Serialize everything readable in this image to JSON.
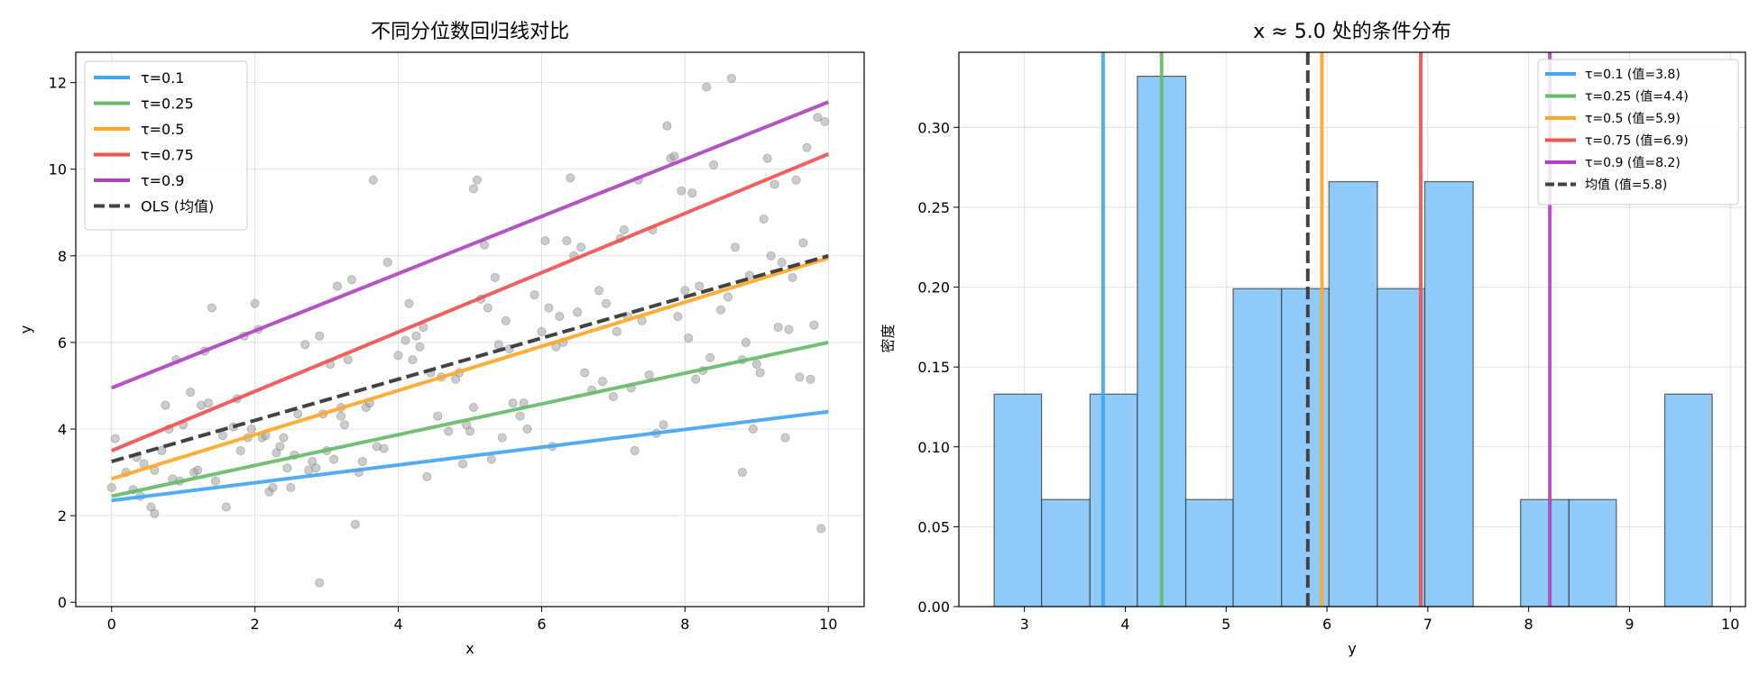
{
  "chart_data": [
    {
      "type": "scatter",
      "title": "不同分位数回归线对比",
      "xlabel": "x",
      "ylabel": "y",
      "xlim": [
        -0.5,
        10.5
      ],
      "ylim": [
        -0.1,
        12.7
      ],
      "xticks": [
        0,
        2,
        4,
        6,
        8,
        10
      ],
      "yticks": [
        0,
        2,
        4,
        6,
        8,
        10,
        12
      ],
      "grid": true,
      "legend_position": "top-left",
      "points_color": "#999999",
      "points": [
        [
          0.0,
          2.65
        ],
        [
          0.05,
          3.78
        ],
        [
          0.2,
          3.0
        ],
        [
          0.3,
          2.6
        ],
        [
          0.35,
          3.35
        ],
        [
          0.4,
          2.45
        ],
        [
          0.45,
          3.2
        ],
        [
          0.55,
          2.2
        ],
        [
          0.6,
          2.05
        ],
        [
          0.6,
          3.05
        ],
        [
          0.7,
          3.5
        ],
        [
          0.75,
          4.55
        ],
        [
          0.8,
          4.0
        ],
        [
          0.85,
          2.85
        ],
        [
          0.9,
          5.6
        ],
        [
          0.95,
          2.8
        ],
        [
          1.0,
          4.1
        ],
        [
          1.1,
          4.85
        ],
        [
          1.15,
          3.0
        ],
        [
          1.2,
          3.05
        ],
        [
          1.25,
          4.55
        ],
        [
          1.3,
          5.8
        ],
        [
          1.35,
          4.6
        ],
        [
          1.4,
          6.8
        ],
        [
          1.45,
          2.8
        ],
        [
          1.55,
          3.85
        ],
        [
          1.6,
          2.2
        ],
        [
          1.7,
          4.05
        ],
        [
          1.75,
          4.7
        ],
        [
          1.8,
          3.5
        ],
        [
          1.85,
          6.15
        ],
        [
          1.9,
          3.8
        ],
        [
          1.95,
          4.0
        ],
        [
          2.0,
          6.9
        ],
        [
          2.05,
          6.3
        ],
        [
          2.1,
          3.8
        ],
        [
          2.15,
          3.85
        ],
        [
          2.2,
          2.55
        ],
        [
          2.25,
          2.65
        ],
        [
          2.3,
          3.45
        ],
        [
          2.35,
          3.6
        ],
        [
          2.4,
          3.8
        ],
        [
          2.45,
          3.1
        ],
        [
          2.5,
          2.65
        ],
        [
          2.55,
          3.4
        ],
        [
          2.6,
          4.35
        ],
        [
          2.7,
          5.95
        ],
        [
          2.75,
          3.05
        ],
        [
          2.8,
          3.25
        ],
        [
          2.85,
          3.1
        ],
        [
          2.9,
          6.15
        ],
        [
          2.9,
          0.45
        ],
        [
          2.95,
          4.35
        ],
        [
          3.0,
          3.5
        ],
        [
          3.05,
          5.5
        ],
        [
          3.1,
          3.3
        ],
        [
          3.15,
          7.3
        ],
        [
          3.2,
          4.5
        ],
        [
          3.2,
          4.3
        ],
        [
          3.25,
          4.1
        ],
        [
          3.3,
          5.6
        ],
        [
          3.35,
          7.45
        ],
        [
          3.4,
          1.8
        ],
        [
          3.45,
          3.0
        ],
        [
          3.5,
          3.25
        ],
        [
          3.55,
          4.5
        ],
        [
          3.6,
          4.6
        ],
        [
          3.65,
          9.75
        ],
        [
          3.7,
          3.6
        ],
        [
          3.8,
          3.55
        ],
        [
          3.85,
          7.85
        ],
        [
          4.0,
          5.7
        ],
        [
          4.1,
          6.05
        ],
        [
          4.15,
          6.9
        ],
        [
          4.2,
          5.6
        ],
        [
          4.25,
          6.15
        ],
        [
          4.3,
          5.9
        ],
        [
          4.35,
          6.35
        ],
        [
          4.4,
          2.9
        ],
        [
          4.45,
          5.3
        ],
        [
          4.55,
          4.3
        ],
        [
          4.6,
          5.2
        ],
        [
          4.7,
          3.95
        ],
        [
          4.8,
          5.15
        ],
        [
          4.85,
          5.3
        ],
        [
          4.9,
          3.2
        ],
        [
          4.95,
          4.1
        ],
        [
          5.0,
          3.95
        ],
        [
          5.05,
          4.5
        ],
        [
          5.05,
          9.55
        ],
        [
          5.1,
          9.75
        ],
        [
          5.15,
          7.0
        ],
        [
          5.2,
          8.25
        ],
        [
          5.25,
          6.8
        ],
        [
          5.3,
          3.3
        ],
        [
          5.35,
          7.5
        ],
        [
          5.4,
          5.95
        ],
        [
          5.45,
          3.8
        ],
        [
          5.5,
          6.5
        ],
        [
          5.55,
          5.85
        ],
        [
          5.6,
          4.6
        ],
        [
          5.7,
          4.3
        ],
        [
          5.75,
          4.6
        ],
        [
          5.8,
          4.0
        ],
        [
          5.9,
          7.1
        ],
        [
          6.0,
          6.25
        ],
        [
          6.05,
          8.35
        ],
        [
          6.1,
          6.8
        ],
        [
          6.15,
          3.6
        ],
        [
          6.2,
          5.9
        ],
        [
          6.25,
          6.6
        ],
        [
          6.3,
          6.0
        ],
        [
          6.35,
          8.35
        ],
        [
          6.4,
          9.8
        ],
        [
          6.45,
          8.0
        ],
        [
          6.5,
          6.7
        ],
        [
          6.55,
          8.2
        ],
        [
          6.6,
          5.3
        ],
        [
          6.7,
          4.9
        ],
        [
          6.8,
          7.2
        ],
        [
          6.85,
          5.1
        ],
        [
          6.9,
          6.9
        ],
        [
          7.0,
          4.75
        ],
        [
          7.05,
          6.25
        ],
        [
          7.1,
          8.4
        ],
        [
          7.15,
          8.6
        ],
        [
          7.2,
          6.6
        ],
        [
          7.25,
          4.95
        ],
        [
          7.3,
          3.5
        ],
        [
          7.35,
          9.75
        ],
        [
          7.4,
          6.5
        ],
        [
          7.5,
          5.25
        ],
        [
          7.55,
          8.6
        ],
        [
          7.6,
          3.9
        ],
        [
          7.7,
          4.1
        ],
        [
          7.75,
          11.0
        ],
        [
          7.8,
          10.25
        ],
        [
          7.85,
          10.3
        ],
        [
          7.9,
          6.6
        ],
        [
          7.95,
          9.5
        ],
        [
          8.0,
          7.2
        ],
        [
          8.05,
          6.1
        ],
        [
          8.1,
          9.45
        ],
        [
          8.15,
          5.15
        ],
        [
          8.2,
          7.3
        ],
        [
          8.25,
          5.35
        ],
        [
          8.3,
          11.9
        ],
        [
          8.35,
          5.65
        ],
        [
          8.4,
          10.1
        ],
        [
          8.5,
          6.75
        ],
        [
          8.6,
          7.05
        ],
        [
          8.65,
          12.1
        ],
        [
          8.7,
          8.2
        ],
        [
          8.8,
          3.0
        ],
        [
          8.8,
          5.6
        ],
        [
          8.85,
          6.0
        ],
        [
          8.9,
          7.55
        ],
        [
          8.95,
          4.0
        ],
        [
          9.0,
          5.5
        ],
        [
          9.05,
          5.3
        ],
        [
          9.1,
          8.85
        ],
        [
          9.15,
          10.25
        ],
        [
          9.2,
          8.0
        ],
        [
          9.25,
          9.65
        ],
        [
          9.3,
          6.35
        ],
        [
          9.35,
          7.85
        ],
        [
          9.4,
          3.8
        ],
        [
          9.45,
          6.3
        ],
        [
          9.5,
          7.5
        ],
        [
          9.55,
          9.75
        ],
        [
          9.6,
          5.2
        ],
        [
          9.65,
          8.3
        ],
        [
          9.7,
          10.5
        ],
        [
          9.75,
          5.15
        ],
        [
          9.8,
          6.4
        ],
        [
          9.85,
          11.2
        ],
        [
          9.9,
          1.7
        ],
        [
          9.95,
          11.1
        ]
      ],
      "series": [
        {
          "name": "τ=0.1",
          "x": [
            0,
            10
          ],
          "y": [
            2.35,
            4.4
          ],
          "color": "#42A5F5",
          "dash": false
        },
        {
          "name": "τ=0.25",
          "x": [
            0,
            10
          ],
          "y": [
            2.45,
            6.0
          ],
          "color": "#66BB6A",
          "dash": false
        },
        {
          "name": "τ=0.5",
          "x": [
            0,
            10
          ],
          "y": [
            2.85,
            7.95
          ],
          "color": "#FFA726",
          "dash": false
        },
        {
          "name": "τ=0.75",
          "x": [
            0,
            10
          ],
          "y": [
            3.5,
            10.35
          ],
          "color": "#EF5350",
          "dash": false
        },
        {
          "name": "τ=0.9",
          "x": [
            0,
            10
          ],
          "y": [
            4.95,
            11.55
          ],
          "color": "#AB47BC",
          "dash": false
        },
        {
          "name": "OLS (均值)",
          "x": [
            0,
            10
          ],
          "y": [
            3.25,
            8.0
          ],
          "color": "#424242",
          "dash": true
        }
      ]
    },
    {
      "type": "bar",
      "title": "x ≈ 5.0 处的条件分布",
      "xlabel": "y",
      "ylabel": "密度",
      "xlim": [
        2.35,
        10.15
      ],
      "ylim": [
        0,
        0.347
      ],
      "xticks": [
        3,
        4,
        5,
        6,
        7,
        8,
        9,
        10
      ],
      "yticks": [
        0.0,
        0.05,
        0.1,
        0.15,
        0.2,
        0.25,
        0.3
      ],
      "ytick_labels": [
        "0.00",
        "0.05",
        "0.10",
        "0.15",
        "0.20",
        "0.25",
        "0.30"
      ],
      "grid": true,
      "legend_position": "top-right",
      "bar_color": "#90CAF9",
      "bin_edges": [
        2.7,
        3.17,
        3.65,
        4.12,
        4.6,
        5.07,
        5.55,
        6.02,
        6.5,
        6.97,
        7.45,
        7.92,
        8.4,
        8.87,
        9.35,
        9.82
      ],
      "densities": [
        0.133,
        0.067,
        0.133,
        0.332,
        0.067,
        0.199,
        0.199,
        0.266,
        0.199,
        0.266,
        0,
        0.067,
        0.067,
        0,
        0.133
      ],
      "vlines": [
        {
          "name": "τ=0.1 (值=3.8)",
          "x": 3.78,
          "color": "#42A5F5",
          "dash": false
        },
        {
          "name": "τ=0.25 (值=4.4)",
          "x": 4.36,
          "color": "#66BB6A",
          "dash": false
        },
        {
          "name": "τ=0.5 (值=5.9)",
          "x": 5.95,
          "color": "#FFA726",
          "dash": false
        },
        {
          "name": "τ=0.75 (值=6.9)",
          "x": 6.93,
          "color": "#EF5350",
          "dash": false
        },
        {
          "name": "τ=0.9 (值=8.2)",
          "x": 8.21,
          "color": "#AB47BC",
          "dash": false
        },
        {
          "name": "均值 (值=5.8)",
          "x": 5.81,
          "color": "#424242",
          "dash": true
        }
      ]
    }
  ]
}
